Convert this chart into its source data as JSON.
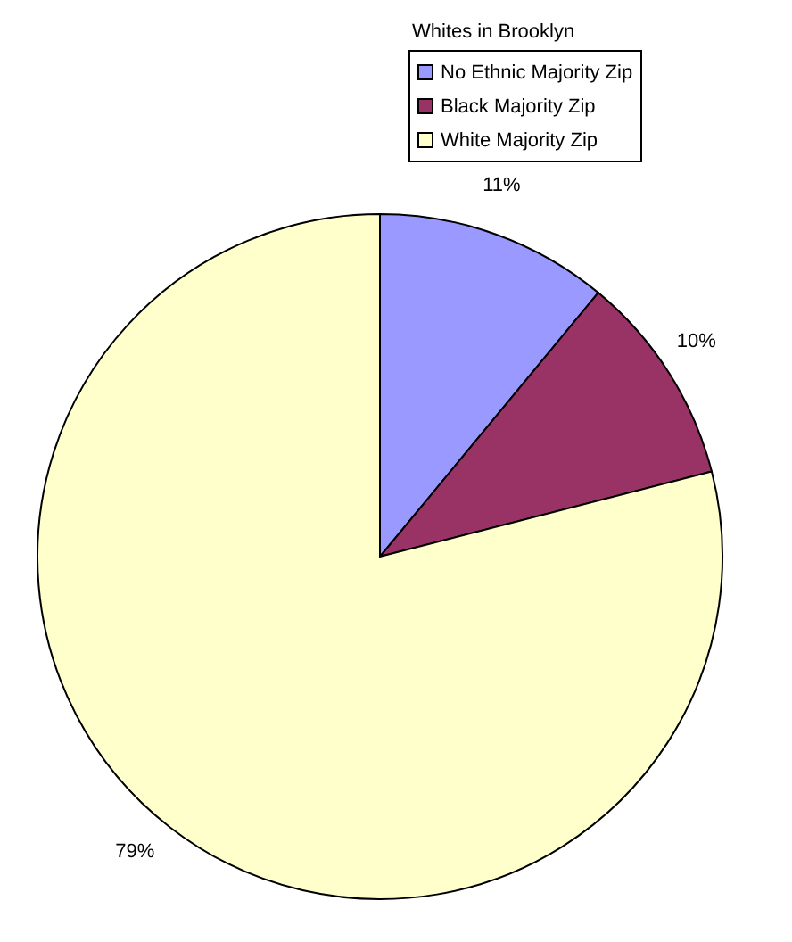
{
  "chart_data": {
    "type": "pie",
    "legend_title": "Whites in Brooklyn",
    "categories": [
      "No Ethnic Majority Zip",
      "Black Majority Zip",
      "White Majority Zip"
    ],
    "values": [
      11,
      10,
      79
    ],
    "colors": [
      "#9999ff",
      "#993366",
      "#ffffcc"
    ],
    "value_labels": [
      "11%",
      "10%",
      "79%"
    ],
    "legend": "top right"
  }
}
